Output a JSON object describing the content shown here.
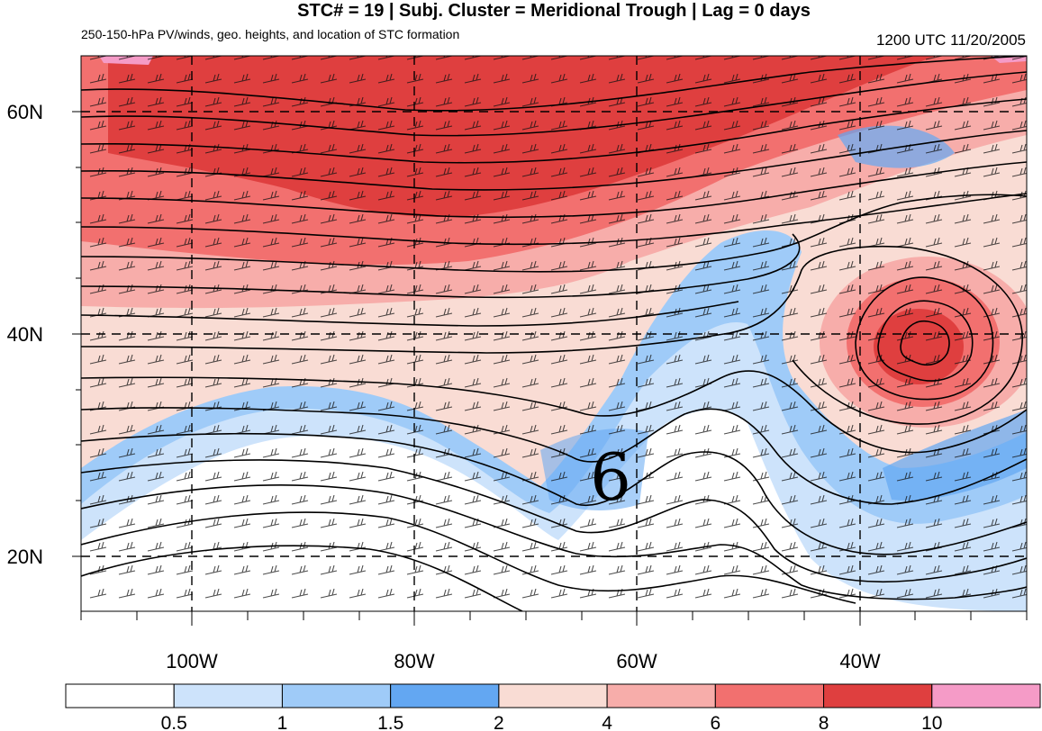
{
  "header": {
    "title": "STC# = 19 | Subj. Cluster = Meridional Trough | Lag = 0 days",
    "subtitle": "250-150-hPa PV/winds, geo. heights, and location of STC formation",
    "datetime": "1200 UTC  11/20/2005"
  },
  "map": {
    "lon_labels": [
      "100W",
      "80W",
      "60W",
      "40W"
    ],
    "lat_labels": [
      "60N",
      "40N",
      "20N"
    ],
    "storm_symbol": "6"
  },
  "colorbar": {
    "labels": [
      "0.5",
      "1",
      "1.5",
      "2",
      "4",
      "6",
      "8",
      "10"
    ],
    "colors": [
      "#ffffff",
      "#cde3fb",
      "#9fcbf8",
      "#63a7f2",
      "#f9dcd4",
      "#f7adaa",
      "#f2706f",
      "#df3f3f",
      "#f59bc7"
    ]
  }
}
